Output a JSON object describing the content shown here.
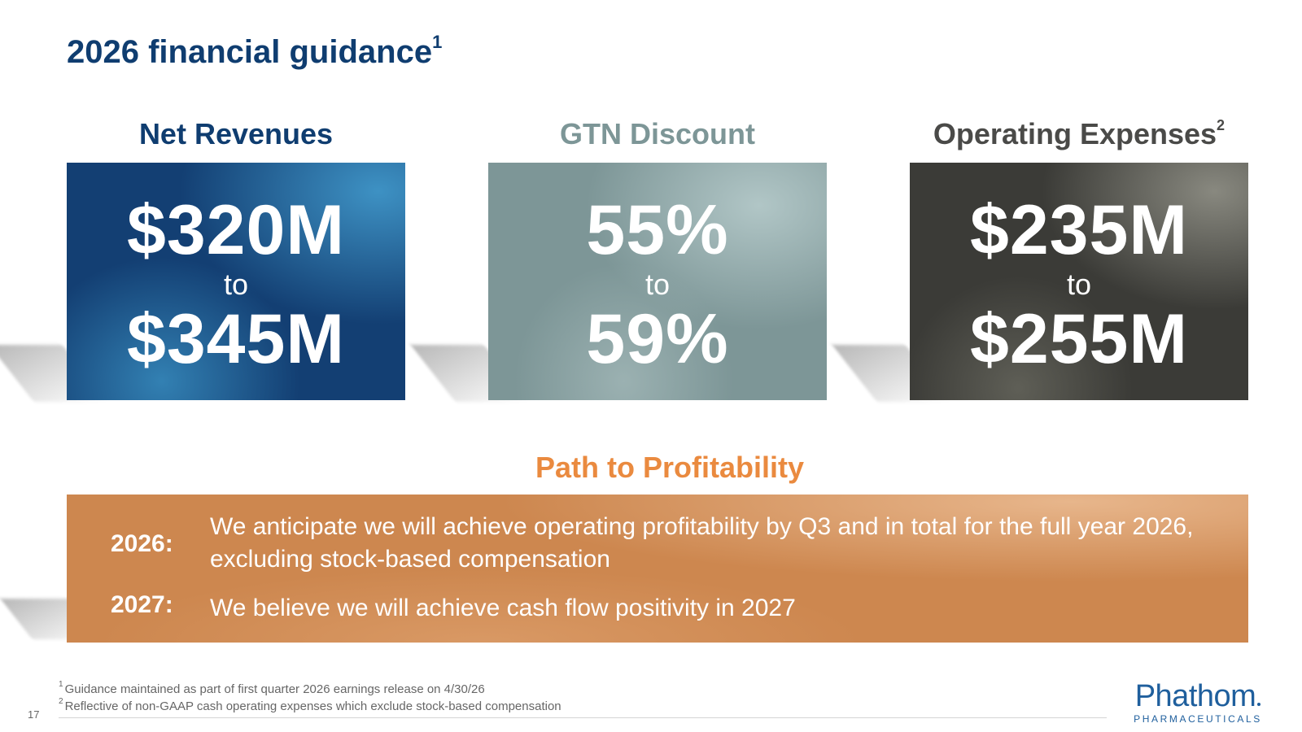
{
  "slide": {
    "title": "2026 financial guidance",
    "title_footnote": "1",
    "page_number": "17"
  },
  "colors": {
    "navy": "#0f3d70",
    "teal_gray": "#7d9697",
    "charcoal": "#3b3b37",
    "orange": "#ea8a3f",
    "orange_box": "#cd874f"
  },
  "metrics": [
    {
      "heading": "Net Revenues",
      "footnote": "",
      "low": "$320M",
      "connector": "to",
      "high": "$345M",
      "heading_color": "#0f3d70"
    },
    {
      "heading": "GTN Discount",
      "footnote": "",
      "low": "55%",
      "connector": "to",
      "high": "59%",
      "heading_color": "#7d9697"
    },
    {
      "heading": "Operating Expenses",
      "footnote": "2",
      "low": "$235M",
      "connector": "to",
      "high": "$255M",
      "heading_color": "#4a4a48"
    }
  ],
  "path": {
    "title": "Path to Profitability",
    "items": [
      {
        "year": "2026:",
        "text": "We anticipate we will achieve operating profitability by Q3 and in total for the full year 2026, excluding stock-based compensation"
      },
      {
        "year": "2027:",
        "text": "We believe we will achieve cash flow positivity in 2027"
      }
    ]
  },
  "footnotes": [
    {
      "mark": "1",
      "text": "Guidance maintained as part of first quarter 2026 earnings release on 4/30/26"
    },
    {
      "mark": "2",
      "text": "Reflective of non-GAAP cash operating expenses which exclude stock-based compensation"
    }
  ],
  "logo": {
    "name": "Phathom",
    "sub": "PHARMACEUTICALS"
  }
}
